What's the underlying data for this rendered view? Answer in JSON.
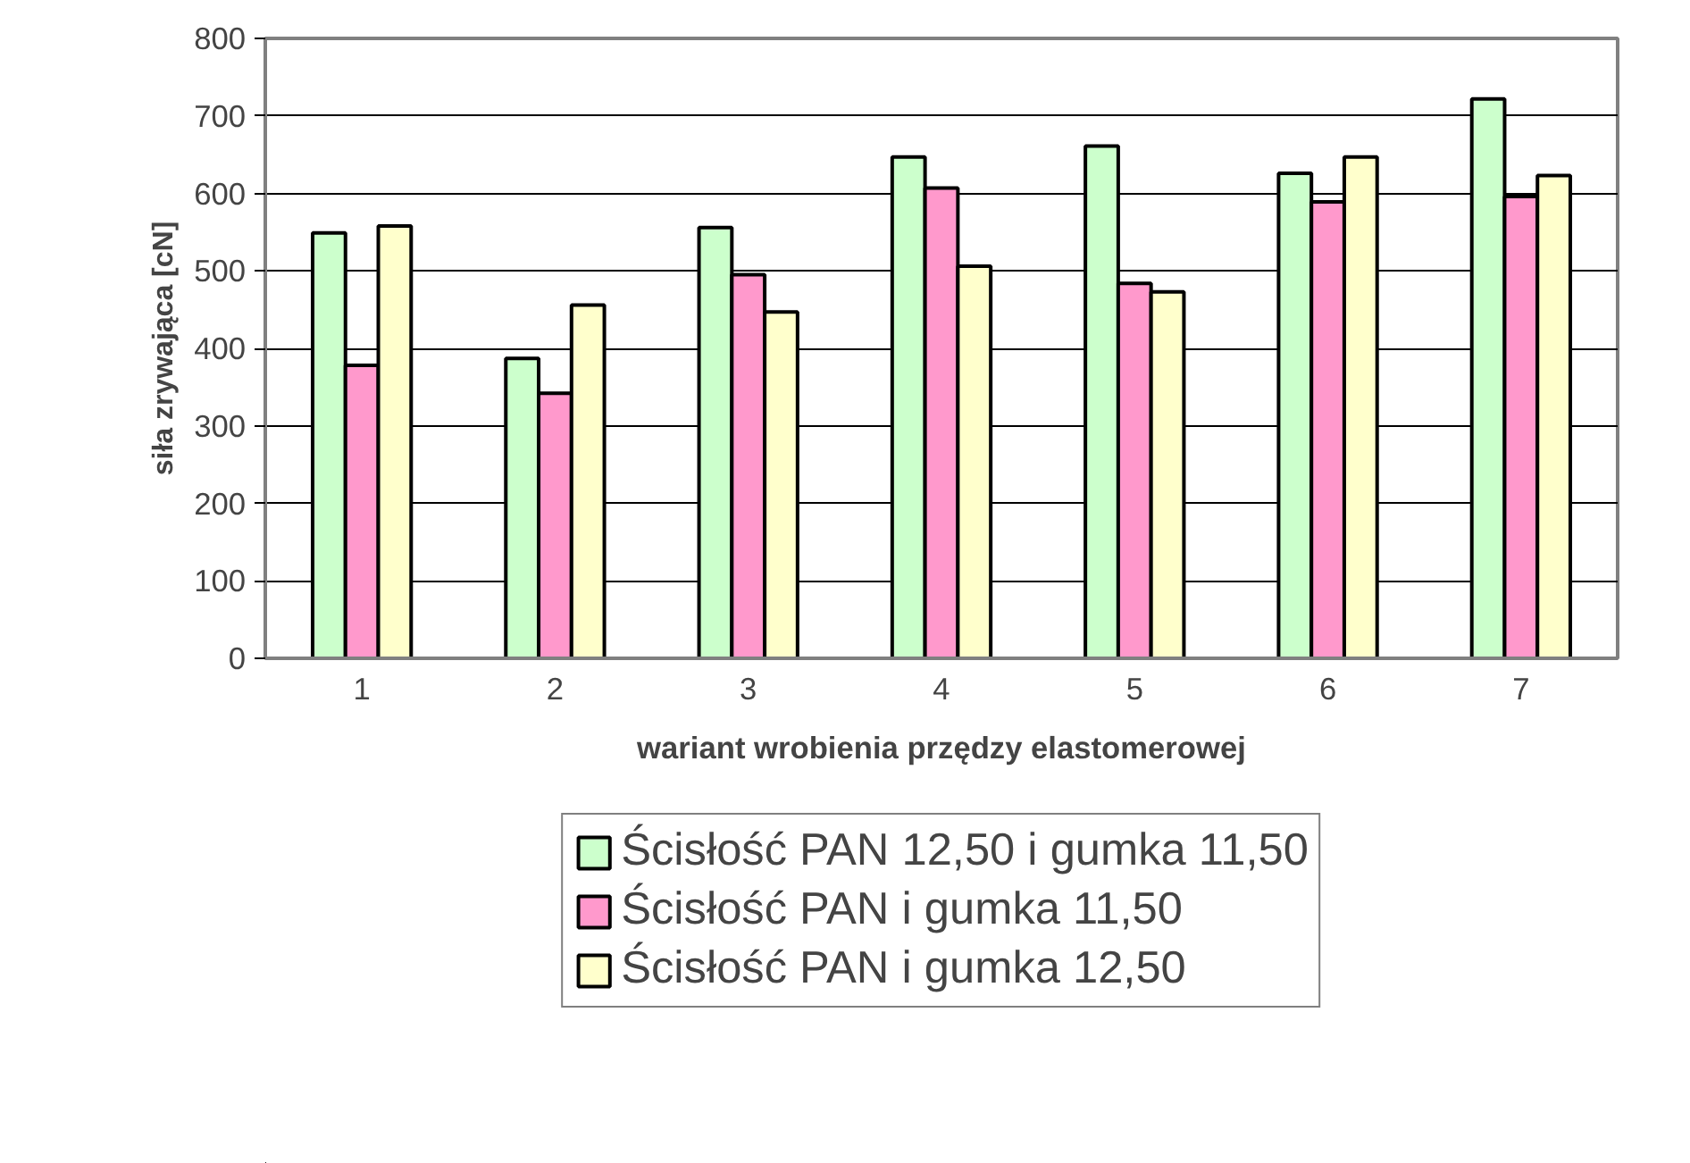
{
  "chart_data": {
    "type": "bar",
    "xlabel": "wariant wrobienia przędzy elastomerowej",
    "ylabel": "siła zrywająca [cN]",
    "categories": [
      "1",
      "2",
      "3",
      "4",
      "5",
      "6",
      "7"
    ],
    "series": [
      {
        "name": "Ścisłość PAN 12,50 i gumka 11,50",
        "color": "#ccffcc",
        "values": [
          549,
          387,
          556,
          647,
          661,
          626,
          722
        ]
      },
      {
        "name": "Ścisłość PAN i gumka 11,50",
        "color": "#ff99cc",
        "values": [
          378,
          342,
          495,
          607,
          484,
          589,
          596
        ]
      },
      {
        "name": "Ścisłość PAN i gumka 12,50",
        "color": "#ffffcc",
        "values": [
          558,
          456,
          447,
          506,
          473,
          647,
          623
        ]
      }
    ],
    "ylim": [
      0,
      800
    ],
    "yticks": [
      0,
      100,
      200,
      300,
      400,
      500,
      600,
      700,
      800
    ],
    "grid": "y",
    "legend": "bottom"
  }
}
